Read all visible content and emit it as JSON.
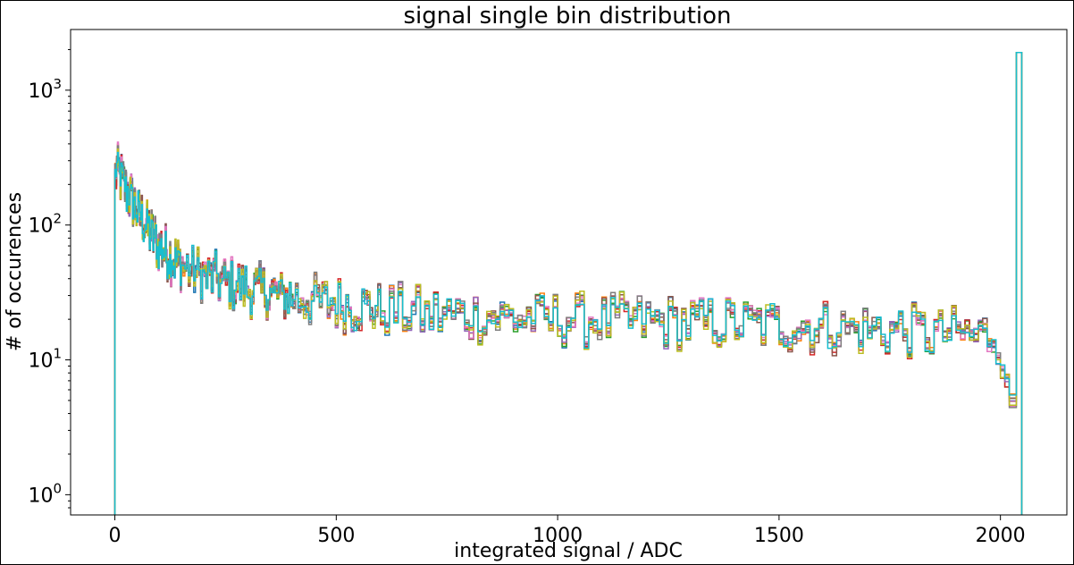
{
  "chart_data": {
    "type": "line",
    "title": "signal single bin distribution",
    "xlabel": "integrated signal / ADC",
    "ylabel": "# of occurences",
    "xlim": [
      -100,
      2150
    ],
    "ylim_log10": [
      -0.15,
      3.45
    ],
    "y_scale": "log",
    "grid": false,
    "legend": "none",
    "x_ticks": [
      0,
      500,
      1000,
      1500,
      2000
    ],
    "x_tick_labels": [
      "0",
      "500",
      "1000",
      "1500",
      "2000"
    ],
    "y_ticks": [
      1,
      10,
      100,
      1000
    ],
    "y_tick_labels": [
      {
        "base": "10",
        "exp": "0"
      },
      {
        "base": "10",
        "exp": "1"
      },
      {
        "base": "10",
        "exp": "2"
      },
      {
        "base": "10",
        "exp": "3"
      }
    ],
    "series_colors": [
      "#1f77b4",
      "#ff7f0e",
      "#2ca02c",
      "#d62728",
      "#9467bd",
      "#8c564b",
      "#e377c2",
      "#7f7f7f",
      "#bcbd22",
      "#17becf"
    ],
    "series_count": 10,
    "bin_width_ADC": 16,
    "distribution": {
      "x": [
        0,
        5,
        20,
        50,
        100,
        150,
        200,
        300,
        400,
        500,
        700,
        1000,
        1500,
        2000,
        2016,
        2032
      ],
      "y": [
        220,
        260,
        200,
        130,
        70,
        50,
        42,
        34,
        29,
        26,
        22,
        20,
        18,
        15,
        5,
        1900
      ]
    }
  }
}
